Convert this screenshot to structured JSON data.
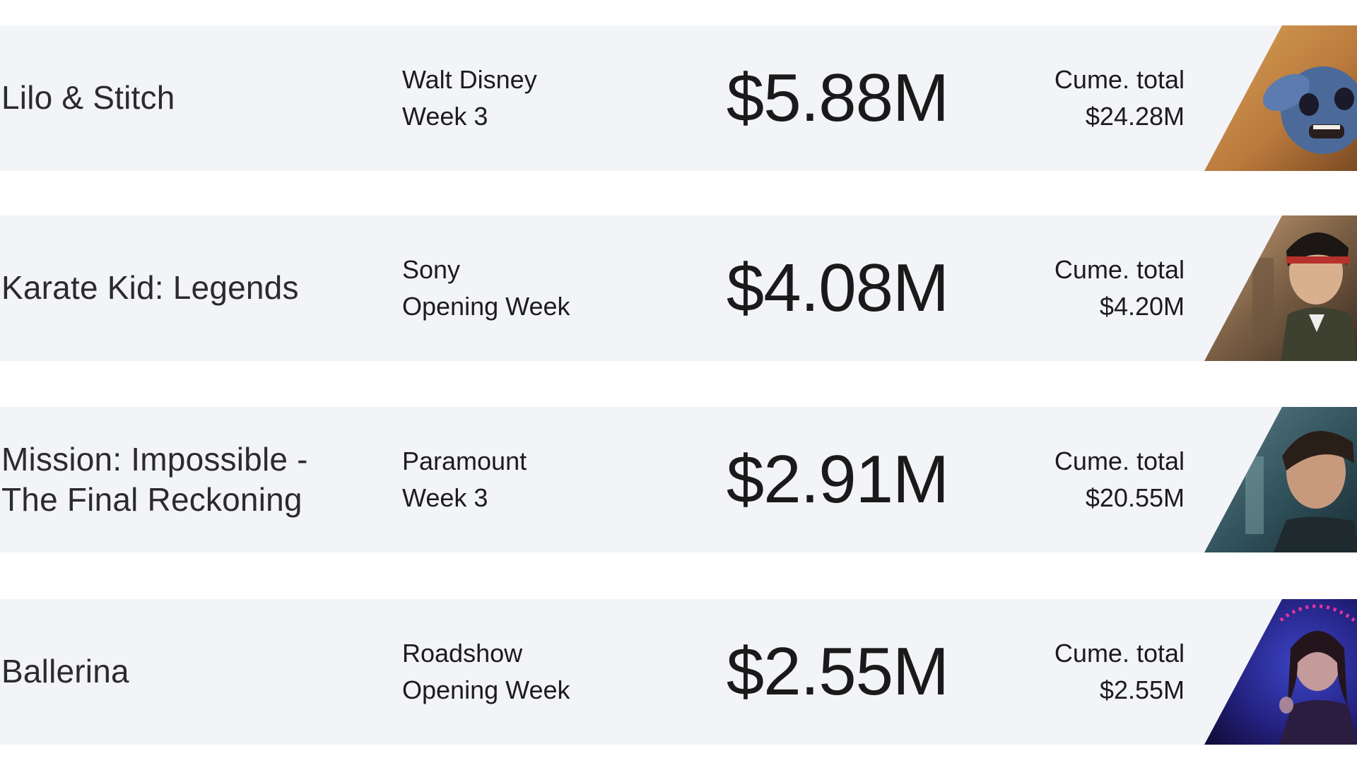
{
  "films": [
    {
      "title": "Lilo & Stitch",
      "studio": "Walt Disney",
      "week": "Week 3",
      "gross": "$5.88M",
      "cume_label": "Cume. total",
      "cume_value": "$24.28M",
      "image": "stitch-poster-icon"
    },
    {
      "title": "Karate Kid: Legends",
      "studio": "Sony",
      "week": "Opening Week",
      "gross": "$4.08M",
      "cume_label": "Cume. total",
      "cume_value": "$4.20M",
      "image": "karate-kid-poster-icon"
    },
    {
      "title": "Mission: Impossible -\nThe Final Reckoning",
      "studio": "Paramount",
      "week": "Week 3",
      "gross": "$2.91M",
      "cume_label": "Cume. total",
      "cume_value": "$20.55M",
      "image": "mission-impossible-poster-icon"
    },
    {
      "title": "Ballerina",
      "studio": "Roadshow",
      "week": "Opening Week",
      "gross": "$2.55M",
      "cume_label": "Cume. total",
      "cume_value": "$2.55M",
      "image": "ballerina-poster-icon"
    }
  ],
  "colors": {
    "row_background": "#f3f4f8",
    "page_background": "#ffffff",
    "text": "#1c1c1c"
  }
}
